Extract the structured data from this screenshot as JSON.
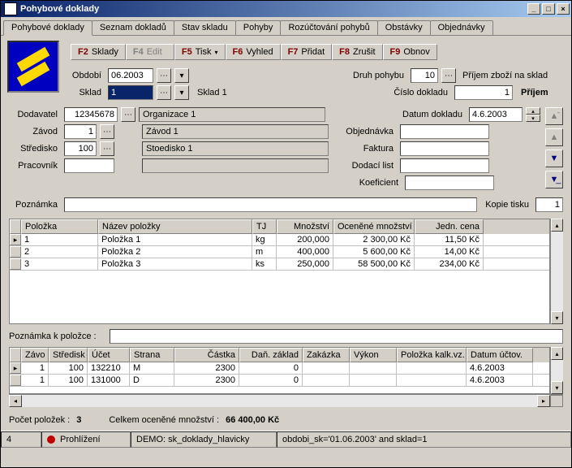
{
  "window": {
    "title": "Pohybové doklady"
  },
  "tabs": [
    "Pohybové doklady",
    "Seznam dokladů",
    "Stav skladu",
    "Pohyby",
    "Rozúčtování pohybů",
    "Obstávky",
    "Objednávky"
  ],
  "toolbar": [
    {
      "key": "F2",
      "label": "Sklady",
      "enabled": true,
      "dd": false
    },
    {
      "key": "F4",
      "label": "Edit",
      "enabled": false,
      "dd": false
    },
    {
      "key": "F5",
      "label": "Tisk",
      "enabled": true,
      "dd": true
    },
    {
      "key": "F6",
      "label": "Vyhled",
      "enabled": true,
      "dd": false
    },
    {
      "key": "F7",
      "label": "Přidat",
      "enabled": true,
      "dd": false
    },
    {
      "key": "F8",
      "label": "Zrušit",
      "enabled": true,
      "dd": false
    },
    {
      "key": "F9",
      "label": "Obnov",
      "enabled": true,
      "dd": false
    }
  ],
  "header": {
    "obdobi_label": "Období",
    "obdobi": "06.2003",
    "sklad_label": "Sklad",
    "sklad": "1",
    "sklad_disp": "Sklad 1",
    "druh_label": "Druh pohybu",
    "druh": "10",
    "druh_disp": "Příjem zboží na sklad",
    "cislo_label": "Číslo dokladu",
    "cislo": "1",
    "cislo_disp": "Příjem"
  },
  "form": {
    "dodavatel_label": "Dodavatel",
    "dodavatel": "12345678",
    "dodavatel_disp": "Organizace 1",
    "zavod_label": "Závod",
    "zavod": "1",
    "zavod_disp": "Závod 1",
    "stredisko_label": "Středisko",
    "stredisko": "100",
    "stredisko_disp": "Stoedisko 1",
    "pracovnik_label": "Pracovník",
    "pracovnik": "",
    "pracovnik_disp": "",
    "datum_label": "Datum dokladu",
    "datum": "4.6.2003",
    "objednavka_label": "Objednávka",
    "objednavka": "",
    "faktura_label": "Faktura",
    "faktura": "",
    "dodaci_label": "Dodací list",
    "dodaci": "",
    "koef_label": "Koeficient",
    "koef": "",
    "poznamka_label": "Poznámka",
    "poznamka": "",
    "kopie_label": "Kopie tisku",
    "kopie": "1"
  },
  "grid1": {
    "cols": [
      "Položka",
      "Název položky",
      "TJ",
      "Množství",
      "Oceněné množství",
      "Jedn. cena"
    ],
    "widths": [
      95,
      190,
      30,
      70,
      100,
      85
    ],
    "align": [
      "left",
      "left",
      "left",
      "right",
      "right",
      "right"
    ],
    "rows": [
      [
        "1",
        "Položka 1",
        "kg",
        "200,000",
        "2 300,00 Kč",
        "11,50 Kč"
      ],
      [
        "2",
        "Položka 2",
        "m",
        "400,000",
        "5 600,00 Kč",
        "14,00 Kč"
      ],
      [
        "3",
        "Položka 3",
        "ks",
        "250,000",
        "58 500,00 Kč",
        "234,00 Kč"
      ]
    ]
  },
  "polpozn_label": "Poznámka k položce :",
  "polpozn": "",
  "grid2": {
    "cols": [
      "Závo",
      "Středisk",
      "Účet",
      "Strana",
      "Částka",
      "Daň. základ",
      "Zakázka",
      "Výkon",
      "Položka kalk.vz.",
      "Datum účtov."
    ],
    "widths": [
      34,
      48,
      52,
      55,
      80,
      78,
      58,
      58,
      86,
      82
    ],
    "align": [
      "right",
      "right",
      "left",
      "left",
      "right",
      "right",
      "left",
      "left",
      "left",
      "left"
    ],
    "rows": [
      [
        "1",
        "100",
        "132210",
        "M",
        "2300",
        "0",
        "",
        "",
        "",
        "4.6.2003"
      ],
      [
        "1",
        "100",
        "131000",
        "D",
        "2300",
        "0",
        "",
        "",
        "",
        "4.6.2003"
      ]
    ]
  },
  "footer": {
    "pocet_label": "Počet položek :",
    "pocet": "3",
    "celkem_label": "Celkem oceněné množství :",
    "celkem": "66 400,00 Kč"
  },
  "status": {
    "cell1": "4",
    "mode": "Prohlížení",
    "demo": "DEMO: sk_doklady_hlavicky",
    "filter": "obdobi_sk='01.06.2003' and sklad=1"
  }
}
